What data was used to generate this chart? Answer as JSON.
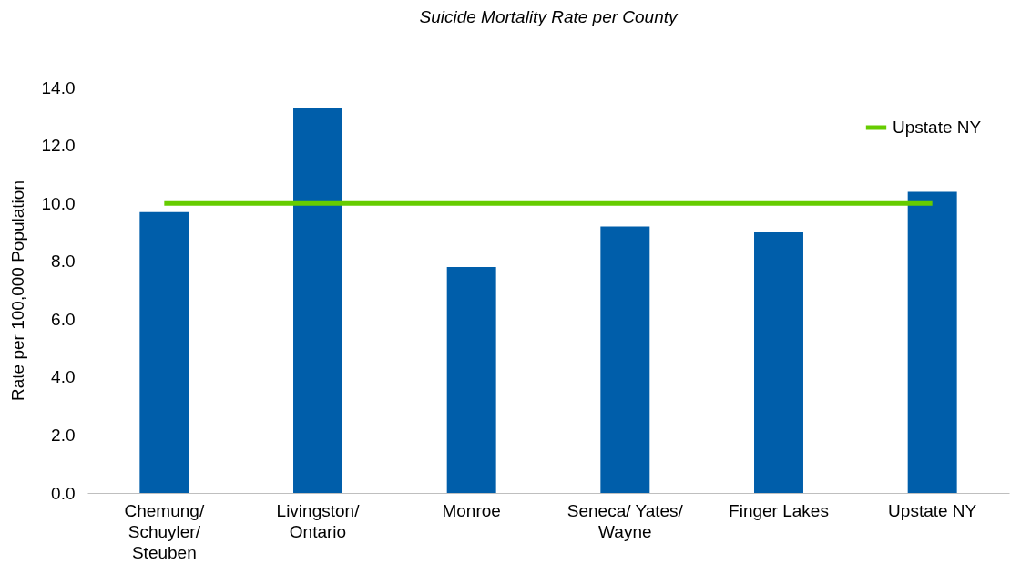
{
  "chart_data": {
    "type": "bar",
    "title": "Suicide Mortality Rate per County",
    "ylabel": "Rate per 100,000 Population",
    "categories": [
      "Chemung/ Schuyler/ Steuben",
      "Livingston/ Ontario",
      "Monroe",
      "Seneca/ Yates/ Wayne",
      "Finger Lakes",
      "Upstate NY"
    ],
    "series": [
      {
        "color": "#005eaa",
        "values": [
          9.7,
          13.3,
          7.8,
          9.2,
          9.0,
          10.4
        ]
      },
      {
        "type": "line",
        "name": "Upstate NY",
        "color": "#66cc00",
        "values": [
          10.0,
          10.0,
          10.0,
          10.0,
          10.0,
          10.0
        ]
      }
    ],
    "ylim": [
      0,
      14
    ],
    "yticks": [
      {
        "value": 0,
        "label": "0.0"
      },
      {
        "value": 2,
        "label": "2.0"
      },
      {
        "value": 4,
        "label": "4.0"
      },
      {
        "value": 6,
        "label": "6.0"
      },
      {
        "value": 8,
        "label": "8.0"
      },
      {
        "value": 10,
        "label": "10.0"
      },
      {
        "value": 12,
        "label": "12.0"
      },
      {
        "value": 14,
        "label": "14.0"
      }
    ],
    "grid": false,
    "legend": "top right",
    "marker": "none",
    "line_style": "solid"
  }
}
